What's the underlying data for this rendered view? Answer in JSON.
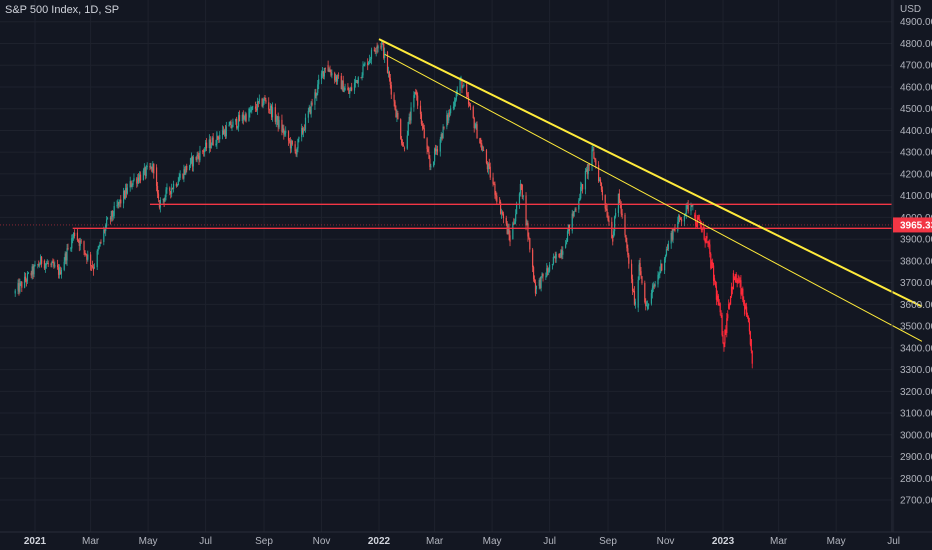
{
  "header": {
    "title": "S&P 500 Index, 1D, SP"
  },
  "price_scale": {
    "currency": "USD",
    "last_price": "3965.33",
    "last_price_color": "#f23645"
  },
  "colors": {
    "background": "#131722",
    "grid": "#1e222d",
    "up": "#26a69a",
    "down": "#ef5350",
    "projected": "#ff2a3a",
    "trendline": "#ffeb3b",
    "support_line": "#f23645"
  },
  "chart_data": {
    "type": "candlestick",
    "title": "S&P 500 Index, 1D, SP",
    "ylabel": "USD",
    "ylim": [
      2610,
      5000
    ],
    "y_ticks": [
      2700,
      2800,
      2900,
      3000,
      3100,
      3200,
      3300,
      3400,
      3500,
      3600,
      3700,
      3800,
      3900,
      4000,
      4100,
      4200,
      4300,
      4400,
      4500,
      4600,
      4700,
      4800,
      4900
    ],
    "x_tick_labels": [
      {
        "label": "2021",
        "date": "2021-01-01",
        "bold": true
      },
      {
        "label": "Mar",
        "date": "2021-03-01",
        "bold": false
      },
      {
        "label": "May",
        "date": "2021-05-01",
        "bold": false
      },
      {
        "label": "Jul",
        "date": "2021-07-01",
        "bold": false
      },
      {
        "label": "Sep",
        "date": "2021-09-01",
        "bold": false
      },
      {
        "label": "Nov",
        "date": "2021-11-01",
        "bold": false
      },
      {
        "label": "2022",
        "date": "2022-01-01",
        "bold": true
      },
      {
        "label": "Mar",
        "date": "2022-03-01",
        "bold": false
      },
      {
        "label": "May",
        "date": "2022-05-01",
        "bold": false
      },
      {
        "label": "Jul",
        "date": "2022-07-01",
        "bold": false
      },
      {
        "label": "Sep",
        "date": "2022-09-01",
        "bold": false
      },
      {
        "label": "Nov",
        "date": "2022-11-01",
        "bold": false
      },
      {
        "label": "2023",
        "date": "2023-01-01",
        "bold": true
      },
      {
        "label": "Mar",
        "date": "2023-03-01",
        "bold": false
      },
      {
        "label": "May",
        "date": "2023-05-01",
        "bold": false
      },
      {
        "label": "Jul",
        "date": "2023-07-01",
        "bold": false
      }
    ],
    "price_path": [
      {
        "date": "2020-12-10",
        "value": 3650
      },
      {
        "date": "2021-01-08",
        "value": 3800
      },
      {
        "date": "2021-01-27",
        "value": 3750
      },
      {
        "date": "2021-02-12",
        "value": 3930
      },
      {
        "date": "2021-03-04",
        "value": 3770
      },
      {
        "date": "2021-03-17",
        "value": 3960
      },
      {
        "date": "2021-04-15",
        "value": 4170
      },
      {
        "date": "2021-05-07",
        "value": 4230
      },
      {
        "date": "2021-05-12",
        "value": 4060
      },
      {
        "date": "2021-06-15",
        "value": 4250
      },
      {
        "date": "2021-07-13",
        "value": 4370
      },
      {
        "date": "2021-08-16",
        "value": 4480
      },
      {
        "date": "2021-09-02",
        "value": 4540
      },
      {
        "date": "2021-10-04",
        "value": 4300
      },
      {
        "date": "2021-11-05",
        "value": 4700
      },
      {
        "date": "2021-11-30",
        "value": 4570
      },
      {
        "date": "2021-12-29",
        "value": 4790
      },
      {
        "date": "2022-01-04",
        "value": 4800
      },
      {
        "date": "2022-01-27",
        "value": 4320
      },
      {
        "date": "2022-02-09",
        "value": 4580
      },
      {
        "date": "2022-02-24",
        "value": 4230
      },
      {
        "date": "2022-03-29",
        "value": 4630
      },
      {
        "date": "2022-05-20",
        "value": 3900
      },
      {
        "date": "2022-06-01",
        "value": 4150
      },
      {
        "date": "2022-06-16",
        "value": 3670
      },
      {
        "date": "2022-07-15",
        "value": 3860
      },
      {
        "date": "2022-08-16",
        "value": 4300
      },
      {
        "date": "2022-09-06",
        "value": 3910
      },
      {
        "date": "2022-09-12",
        "value": 4110
      },
      {
        "date": "2022-09-30",
        "value": 3585
      },
      {
        "date": "2022-10-04",
        "value": 3790
      },
      {
        "date": "2022-10-12",
        "value": 3580
      },
      {
        "date": "2022-11-10",
        "value": 3950
      },
      {
        "date": "2022-11-30",
        "value": 4080
      }
    ],
    "projected_path": [
      {
        "date": "2022-12-01",
        "value": 4000
      },
      {
        "date": "2022-12-08",
        "value": 3960
      },
      {
        "date": "2022-12-15",
        "value": 3890
      },
      {
        "date": "2022-12-22",
        "value": 3720
      },
      {
        "date": "2022-12-29",
        "value": 3550
      },
      {
        "date": "2023-01-02",
        "value": 3420
      },
      {
        "date": "2023-01-06",
        "value": 3580
      },
      {
        "date": "2023-01-12",
        "value": 3720
      },
      {
        "date": "2023-01-18",
        "value": 3700
      },
      {
        "date": "2023-01-24",
        "value": 3580
      },
      {
        "date": "2023-01-30",
        "value": 3440
      },
      {
        "date": "2023-02-01",
        "value": 3300
      }
    ],
    "trendlines": [
      {
        "start": {
          "date": "2022-01-01",
          "value": 4820
        },
        "end": {
          "date": "2023-07-31",
          "value": 3590
        },
        "width": 2
      },
      {
        "start": {
          "date": "2022-01-07",
          "value": 4750
        },
        "end": {
          "date": "2023-07-31",
          "value": 3430
        },
        "width": 1
      }
    ],
    "horizontal_lines": [
      {
        "value": 4060,
        "start_date": "2021-05-03"
      },
      {
        "value": 3950,
        "start_date": "2021-02-10"
      }
    ]
  }
}
